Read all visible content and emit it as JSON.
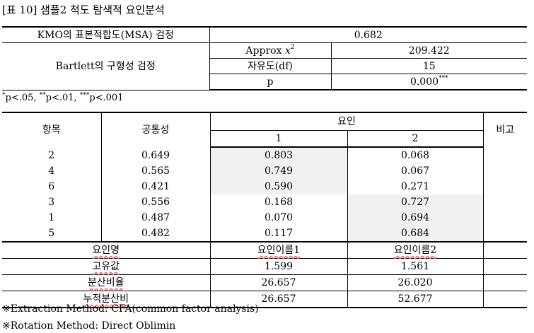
{
  "caption": "[표 10] 샘플2 척도 탐색적 요인분석",
  "kmo": {
    "label": "KMO의 표본적합도(MSA) 검정",
    "value": "0.682"
  },
  "bartlett": {
    "label": "Bartlett의 구형성 검정",
    "rows": [
      {
        "name": "Approx ",
        "symbol": "x",
        "sup": "2",
        "value": "209.422",
        "value_sup": ""
      },
      {
        "name": "자유도(df)",
        "symbol": "",
        "sup": "",
        "value": "15",
        "value_sup": ""
      },
      {
        "name": "p",
        "symbol": "",
        "sup": "",
        "value": "0.000",
        "value_sup": "***"
      }
    ]
  },
  "significance_note": [
    {
      "sup": "*",
      "text": "p<.05, "
    },
    {
      "sup": "**",
      "text": "p<.01, "
    },
    {
      "sup": "***",
      "text": "p<.001"
    }
  ],
  "table": {
    "headers": {
      "item": "항목",
      "communality": "공통성",
      "factor": "요인",
      "factor_1": "1",
      "factor_2": "2",
      "remark": "비고"
    },
    "rows": [
      {
        "item": "2",
        "communality": "0.649",
        "f1": "0.803",
        "f2": "0.068",
        "shade": 1
      },
      {
        "item": "4",
        "communality": "0.565",
        "f1": "0.749",
        "f2": "0.067",
        "shade": 1
      },
      {
        "item": "6",
        "communality": "0.421",
        "f1": "0.590",
        "f2": "0.271",
        "shade": 1
      },
      {
        "item": "3",
        "communality": "0.556",
        "f1": "0.168",
        "f2": "0.727",
        "shade": 2
      },
      {
        "item": "1",
        "communality": "0.487",
        "f1": "0.070",
        "f2": "0.694",
        "shade": 2
      },
      {
        "item": "5",
        "communality": "0.482",
        "f1": "0.117",
        "f2": "0.684",
        "shade": 2
      }
    ],
    "summary": [
      {
        "label": "요인명",
        "f1": "요인이름1",
        "f2": "요인이름2"
      },
      {
        "label": "고유값",
        "f1": "1.599",
        "f2": "1.561"
      },
      {
        "label": "분산비율",
        "f1": "26.657",
        "f2": "26.020"
      },
      {
        "label": "누적분산비",
        "f1": "26.657",
        "f2": "52.677"
      }
    ]
  },
  "footnotes": [
    "※Extraction Method: CFA(common factor analysis)",
    "※Rotation Method: Direct Oblimin"
  ],
  "colors": {
    "shade": "#f1f1f1",
    "border": "#000000",
    "spell_underline": "#e06060"
  }
}
